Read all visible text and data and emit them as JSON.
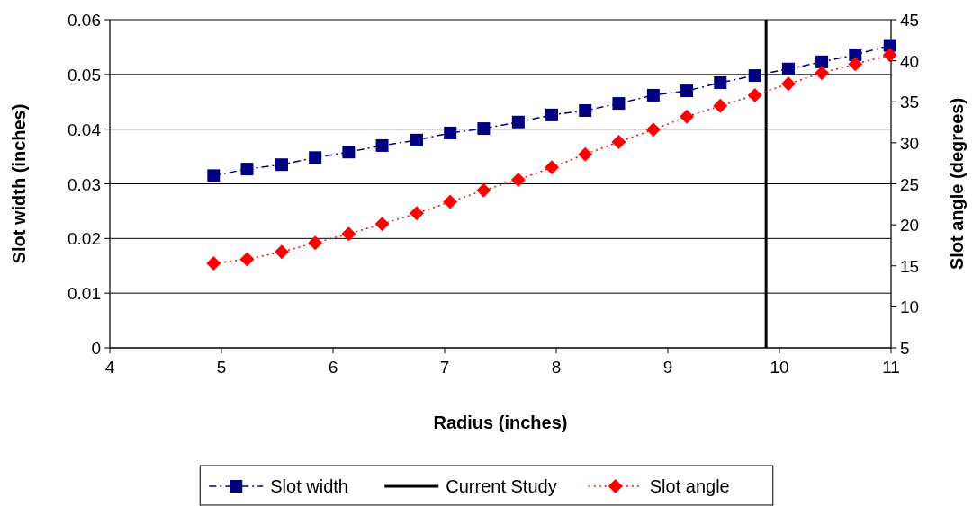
{
  "chart_data": {
    "type": "line",
    "xlabel": "Radius (inches)",
    "ylabel": "Slot width (inches)",
    "y2label": "Slot angle (degrees)",
    "xlim": [
      4,
      11
    ],
    "xticks": [
      4,
      5,
      6,
      7,
      8,
      9,
      10,
      11
    ],
    "ylim": [
      0,
      0.06
    ],
    "yticks": [
      0,
      0.01,
      0.02,
      0.03,
      0.04,
      0.05,
      0.06
    ],
    "y2lim": [
      5,
      45
    ],
    "y2ticks": [
      5,
      10,
      15,
      20,
      25,
      30,
      35,
      40,
      45
    ],
    "x": [
      4.93,
      5.23,
      5.54,
      5.84,
      6.14,
      6.44,
      6.75,
      7.05,
      7.35,
      7.66,
      7.96,
      8.26,
      8.56,
      8.87,
      9.17,
      9.47,
      9.78,
      10.08,
      10.38,
      10.68,
      10.99
    ],
    "series": [
      {
        "name": "Slot width",
        "color": "#000080",
        "marker": "square",
        "line_style": "dashdot",
        "values": [
          0.0315,
          0.0327,
          0.0335,
          0.0348,
          0.0358,
          0.037,
          0.038,
          0.0393,
          0.0401,
          0.0413,
          0.0426,
          0.0434,
          0.0447,
          0.0462,
          0.047,
          0.0485,
          0.0498,
          0.051,
          0.0523,
          0.0536,
          0.0553
        ]
      },
      {
        "name": "Slot angle",
        "color": "#ff0000",
        "marker": "diamond",
        "line_style": "dotted",
        "axis": "y2",
        "values": [
          15.3,
          15.8,
          16.7,
          17.8,
          18.9,
          20.1,
          21.4,
          22.8,
          24.2,
          25.5,
          27.0,
          28.6,
          30.1,
          31.6,
          33.2,
          34.5,
          35.8,
          37.2,
          38.5,
          39.6,
          40.7
        ]
      }
    ],
    "ref_lines": [
      {
        "axis": "x",
        "value": 9.88,
        "label": "Current Study",
        "color": "#000000"
      }
    ],
    "grid": "y",
    "legend": "bottom"
  }
}
